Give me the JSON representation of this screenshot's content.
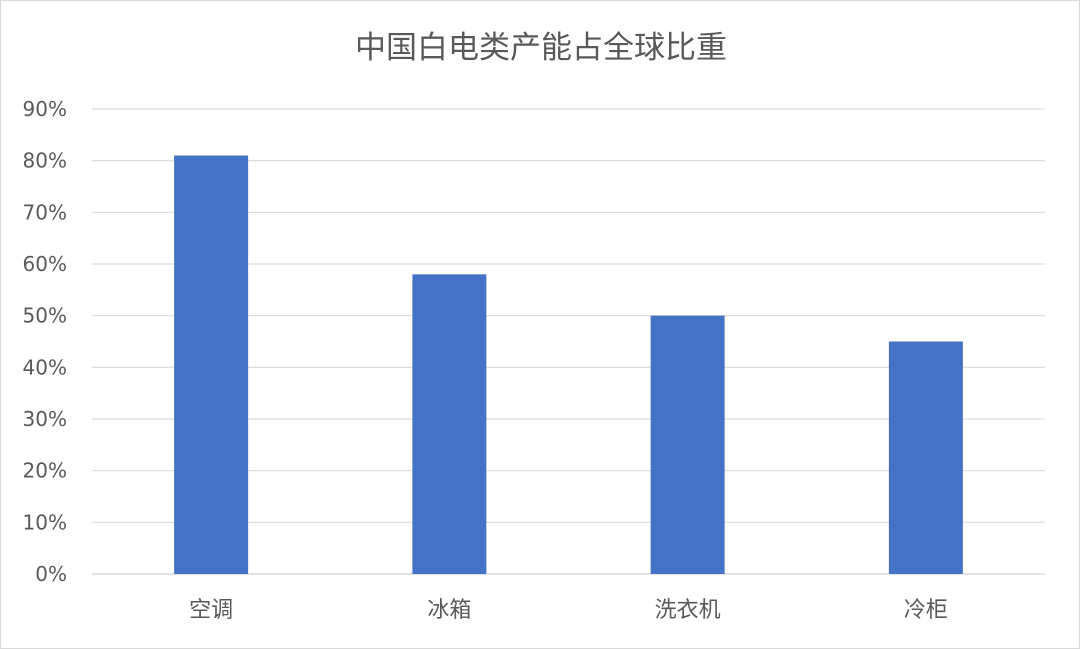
{
  "chart_data": {
    "type": "bar",
    "title": "中国白电类产能占全球比重",
    "categories": [
      "空调",
      "冰箱",
      "洗衣机",
      "冷柜"
    ],
    "values": [
      0.81,
      0.58,
      0.5,
      0.45
    ],
    "ylim": [
      0,
      0.9
    ],
    "yticks": [
      "0%",
      "10%",
      "20%",
      "30%",
      "40%",
      "50%",
      "60%",
      "70%",
      "80%",
      "90%"
    ],
    "xlabel": "",
    "ylabel": "",
    "grid": true,
    "legend": "none",
    "bar_color": "#4472C4",
    "grid_color": "#d9d9d9"
  }
}
